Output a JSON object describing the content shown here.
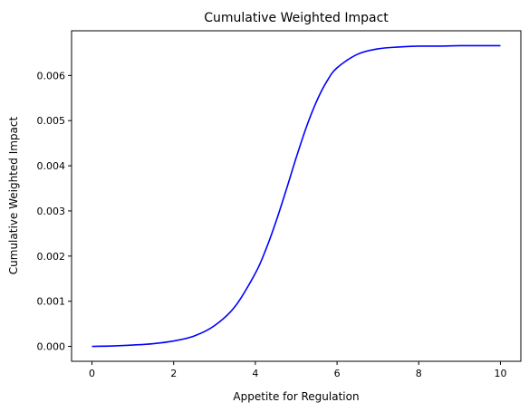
{
  "chart_data": {
    "type": "line",
    "title": "Cumulative Weighted Impact",
    "xlabel": "Appetite for Regulation",
    "ylabel": "Cumulative Weighted Impact",
    "xlim": [
      -0.5,
      10.5
    ],
    "ylim": [
      -0.00033,
      0.00699
    ],
    "x_ticks": [
      0,
      2,
      4,
      6,
      8,
      10
    ],
    "x_tick_labels": [
      "0",
      "2",
      "4",
      "6",
      "8",
      "10"
    ],
    "y_ticks": [
      0,
      0.001,
      0.002,
      0.003,
      0.004,
      0.005,
      0.006
    ],
    "y_tick_labels": [
      "0.000",
      "0.001",
      "0.002",
      "0.003",
      "0.004",
      "0.005",
      "0.006"
    ],
    "grid": false,
    "legend": "none",
    "series": [
      {
        "color": "#0000ff",
        "x": [
          0,
          0.5,
          1,
          1.5,
          2,
          2.5,
          3,
          3.5,
          4,
          4.25,
          4.5,
          4.75,
          5,
          5.25,
          5.5,
          5.75,
          6,
          6.5,
          7,
          7.5,
          8,
          8.5,
          9,
          9.5,
          10
        ],
        "y": [
          0.0,
          1e-05,
          3e-05,
          6e-05,
          0.00012,
          0.00023,
          0.00046,
          0.00088,
          0.00162,
          0.00213,
          0.00275,
          0.00345,
          0.00418,
          0.00486,
          0.00543,
          0.00587,
          0.00617,
          0.00647,
          0.00659,
          0.00663,
          0.00665,
          0.00665,
          0.00666,
          0.00666,
          0.00666
        ]
      }
    ]
  }
}
